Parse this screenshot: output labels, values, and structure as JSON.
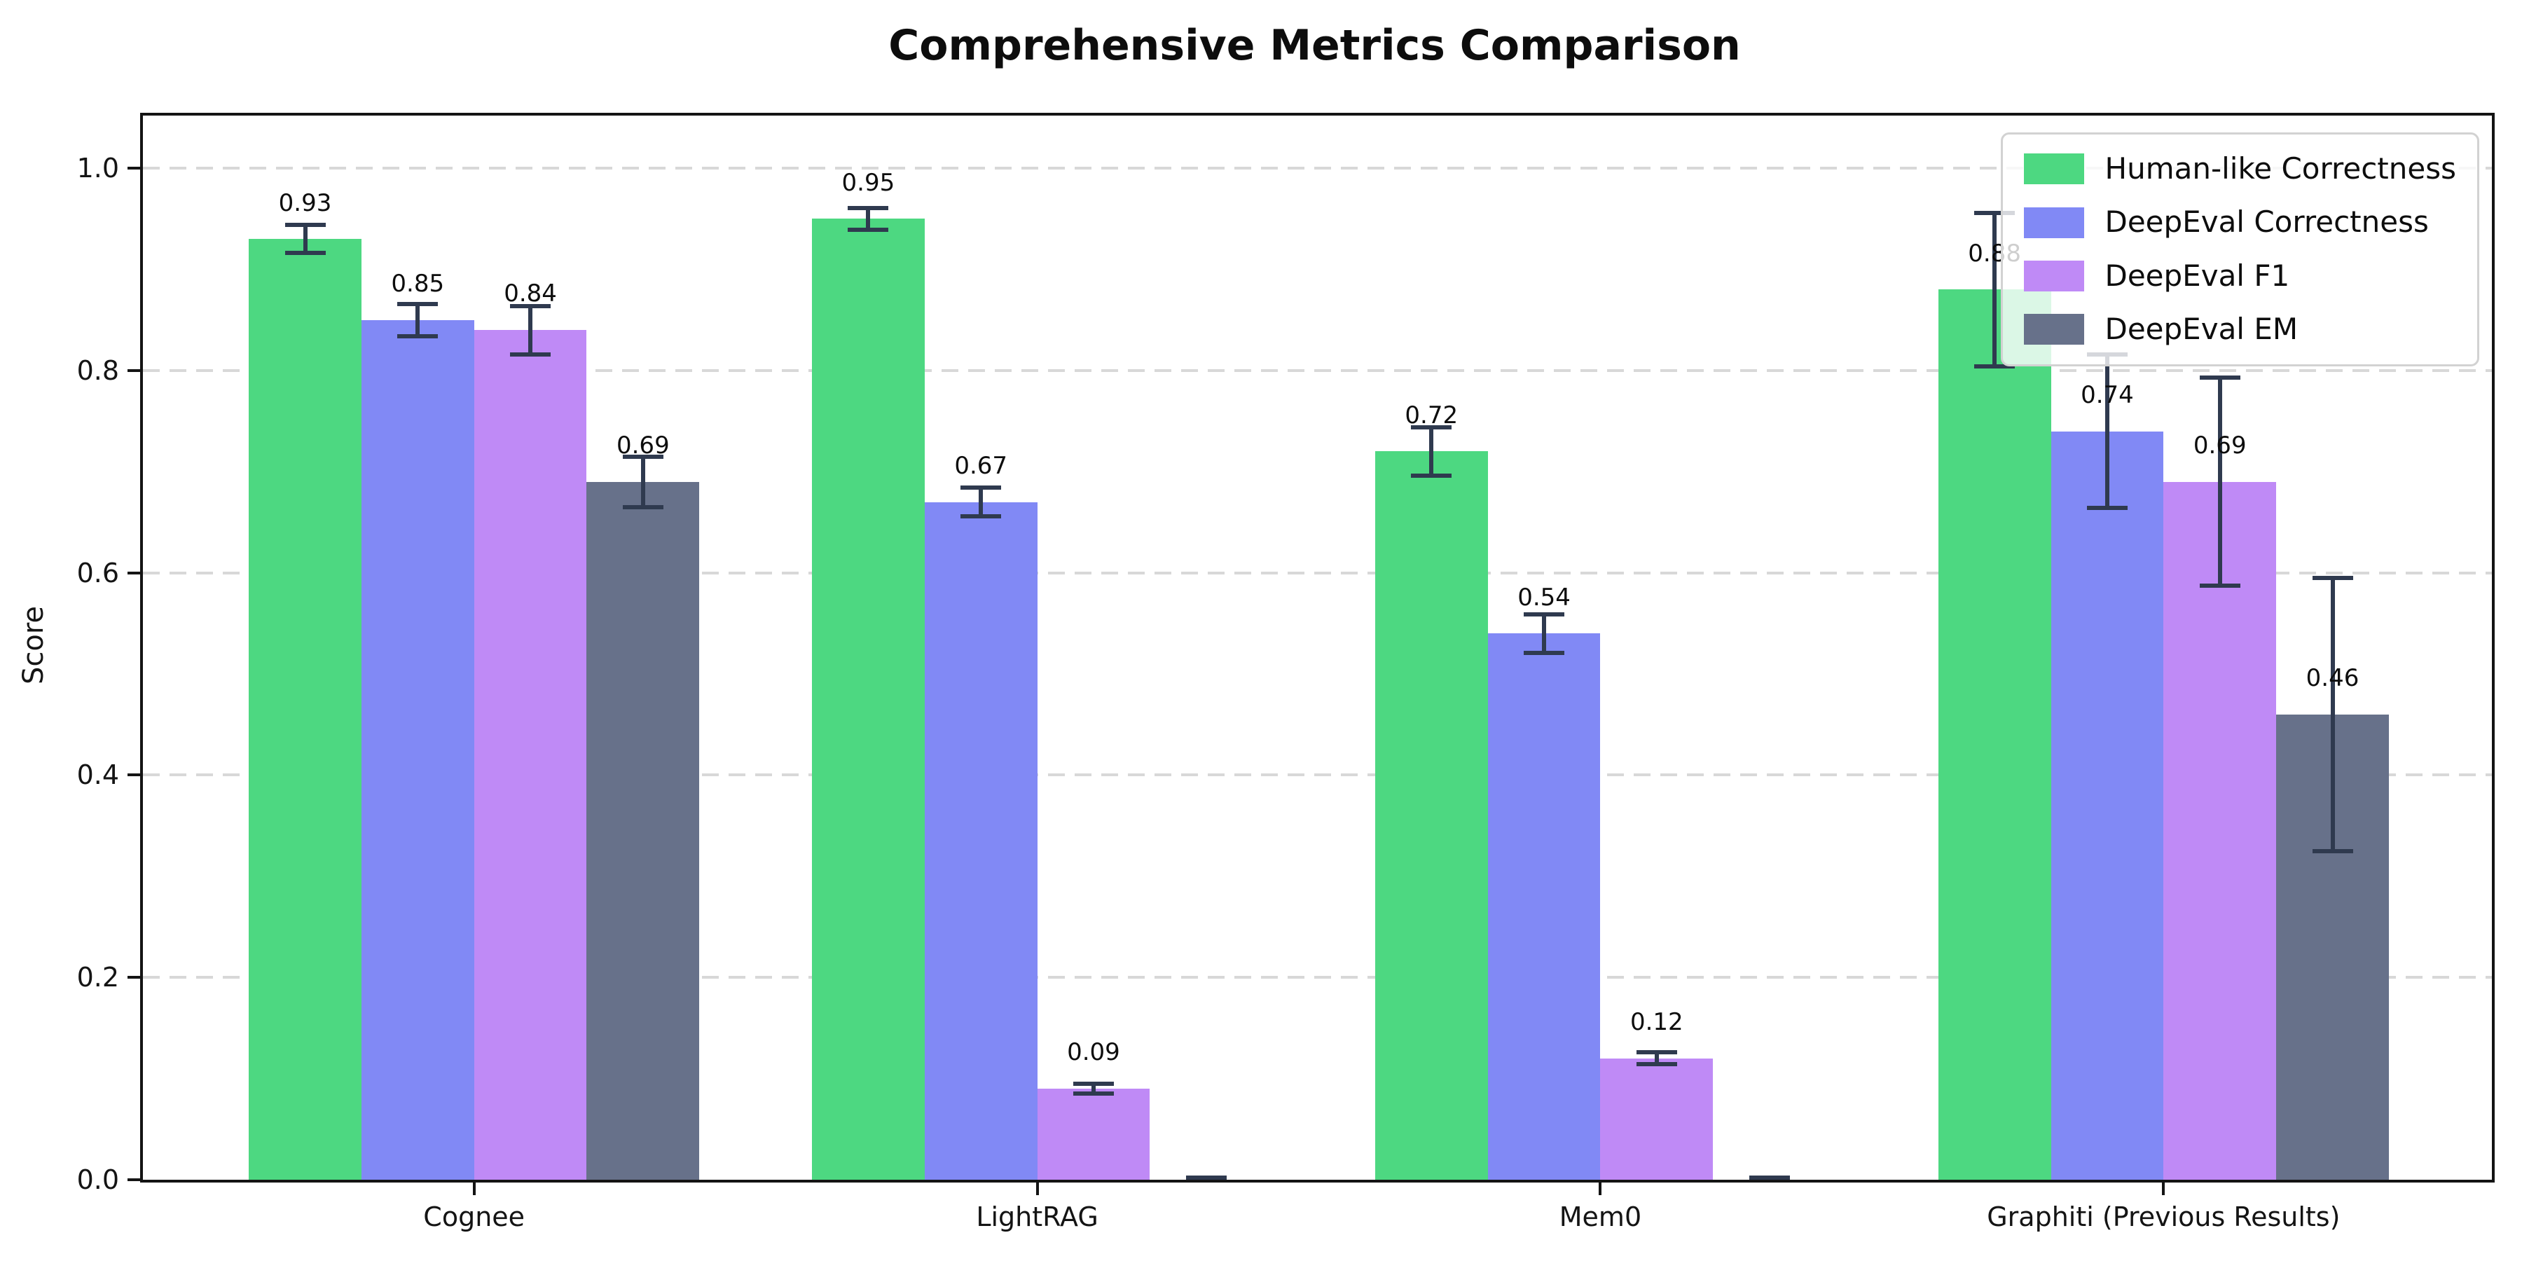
{
  "chart_data": {
    "type": "bar",
    "title": "Comprehensive Metrics Comparison",
    "ylabel": "Score",
    "xlabel": "",
    "categories": [
      "Cognee",
      "LightRAG",
      "Mem0",
      "Graphiti (Previous Results)"
    ],
    "series": [
      {
        "name": "Human-like Correctness",
        "color": "#4dd881",
        "values": [
          0.93,
          0.95,
          0.72,
          0.88
        ],
        "errors": [
          0.016,
          0.013,
          0.026,
          0.078
        ],
        "labels": [
          "0.93",
          "0.95",
          "0.72",
          "0.88"
        ]
      },
      {
        "name": "DeepEval Correctness",
        "color": "#8189f5",
        "values": [
          0.85,
          0.67,
          0.54,
          0.74
        ],
        "errors": [
          0.018,
          0.016,
          0.021,
          0.078
        ],
        "labels": [
          "0.85",
          "0.67",
          "0.54",
          "0.74"
        ]
      },
      {
        "name": "DeepEval F1",
        "color": "#bf8af6",
        "values": [
          0.84,
          0.09,
          0.12,
          0.69
        ],
        "errors": [
          0.026,
          0.007,
          0.008,
          0.105
        ],
        "labels": [
          "0.84",
          "0.09",
          "0.12",
          "0.69"
        ]
      },
      {
        "name": "DeepEval EM",
        "color": "#67718a",
        "values": [
          0.69,
          0.0,
          0.0,
          0.46
        ],
        "errors": [
          0.027,
          0.004,
          0.004,
          0.137
        ],
        "labels": [
          "0.69",
          "",
          "",
          "0.46"
        ]
      }
    ],
    "yticks": [
      "0.0",
      "0.2",
      "0.4",
      "0.6",
      "0.8",
      "1.0"
    ],
    "ylim": [
      0,
      1.052
    ],
    "bar_width_units": 0.2,
    "x_range": [
      -0.588,
      3.583
    ],
    "grid": "horizontal-dashed",
    "grid_color": "#d8d8d8",
    "error_bar_color": "#2f3a4f",
    "legend_position": "upper right",
    "legend_face_alpha": 0.8
  }
}
